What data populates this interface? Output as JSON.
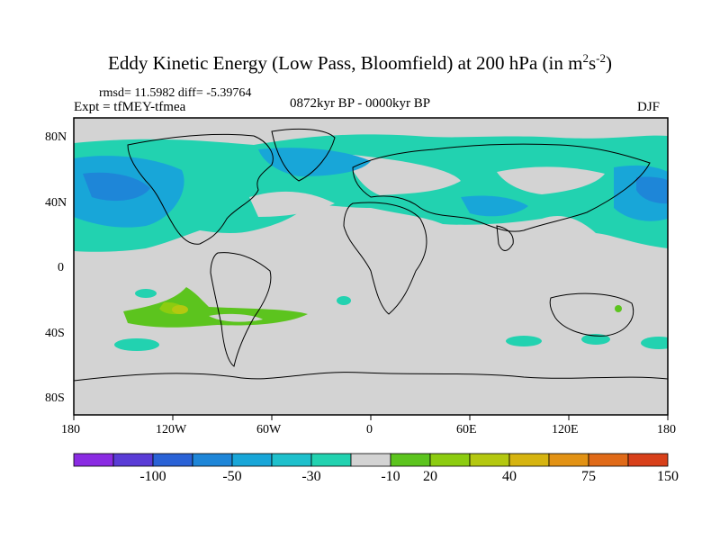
{
  "title": {
    "main": "Eddy Kinetic Energy (Low Pass, Bloomfield) at 200 hPa (in m",
    "sup1": "2",
    "mid": "s",
    "sup2": "-2",
    "end": ")"
  },
  "stats": {
    "rmsd": "rmsd= 11.5982 diff= -5.39764"
  },
  "experiment": "Expt = tfMEY-tfmea",
  "period": "0872kyr BP - 0000kyr BP",
  "season": "DJF",
  "axes": {
    "lon_labels": [
      "180",
      "120W",
      "60W",
      "0",
      "60E",
      "120E",
      "180"
    ],
    "lat_labels": [
      "80N",
      "40N",
      "0",
      "40S",
      "80S"
    ]
  },
  "colorbar": {
    "labels": [
      "-100",
      "-50",
      "-30",
      "-10",
      "20",
      "40",
      "75",
      "150"
    ],
    "colors": [
      "#8a2be2",
      "#5a3cd6",
      "#2a62d6",
      "#1e86d8",
      "#18a6d8",
      "#1ec0cc",
      "#22d2b0",
      "#d3d3d3",
      "#5cc41e",
      "#8ccc10",
      "#b4c810",
      "#d6b410",
      "#e29214",
      "#e06a18",
      "#d8401a"
    ]
  },
  "chart_data": {
    "type": "map-contour",
    "title": "Eddy Kinetic Energy (Low Pass, Bloomfield) at 200 hPa (in m^2 s^-2)",
    "variable": "eddy kinetic energy difference",
    "level": "200 hPa",
    "units": "m2 s-2",
    "rmsd": 11.5982,
    "diff": -5.39764,
    "lon_range": [
      -180,
      180
    ],
    "lat_range": [
      -90,
      90
    ],
    "levels": [
      -100,
      -50,
      -30,
      -10,
      20,
      40,
      75,
      150
    ],
    "anomalies": [
      {
        "region": "North Pacific",
        "lon": -155,
        "lat": 40,
        "sign": "negative"
      },
      {
        "region": "North Atlantic",
        "lon": -40,
        "lat": 55,
        "sign": "negative"
      },
      {
        "region": "Eurasia",
        "lon": 60,
        "lat": 40,
        "sign": "negative"
      },
      {
        "region": "South Pacific",
        "lon": -120,
        "lat": -25,
        "sign": "positive"
      }
    ]
  }
}
